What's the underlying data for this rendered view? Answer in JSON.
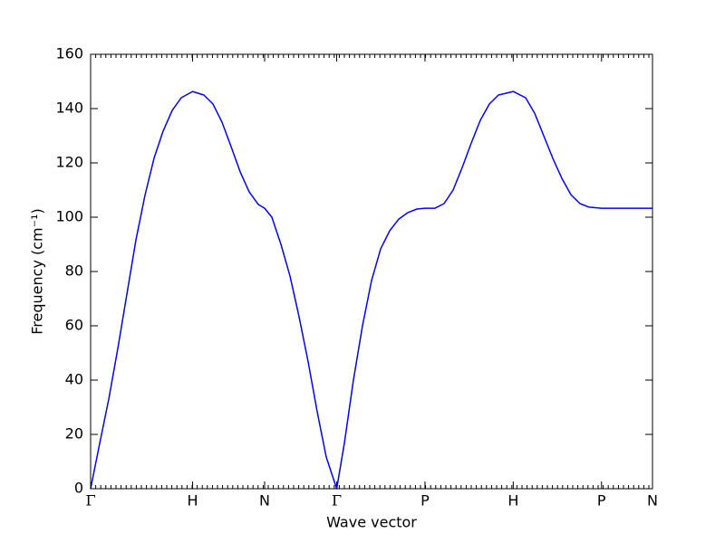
{
  "chart_data": {
    "type": "line",
    "xlabel": "Wave vector",
    "ylabel": "Frequency (cm⁻¹)",
    "xlim": [
      0,
      5.512
    ],
    "xticks": [
      {
        "value": 0,
        "label": "Γ"
      },
      {
        "value": 1,
        "label": "H"
      },
      {
        "value": 1.707,
        "label": "N"
      },
      {
        "value": 2.414,
        "label": "Γ"
      },
      {
        "value": 3.28,
        "label": "P"
      },
      {
        "value": 4.146,
        "label": "H"
      },
      {
        "value": 5.012,
        "label": "P"
      },
      {
        "value": 5.512,
        "label": "N"
      }
    ],
    "ylim": [
      0,
      160
    ],
    "yticks": [
      0,
      20,
      40,
      60,
      80,
      100,
      120,
      140,
      160
    ],
    "x": [
      0,
      0.089,
      0.178,
      0.267,
      0.356,
      0.445,
      0.533,
      0.622,
      0.711,
      0.8,
      0.889,
      1,
      1.111,
      1.2,
      1.289,
      1.378,
      1.467,
      1.556,
      1.645,
      1.707,
      1.778,
      1.867,
      1.956,
      2.045,
      2.134,
      2.223,
      2.311,
      2.414,
      2.489,
      2.578,
      2.667,
      2.756,
      2.845,
      2.934,
      3.023,
      3.112,
      3.2,
      3.28,
      3.378,
      3.467,
      3.556,
      3.645,
      3.734,
      3.823,
      3.912,
      4.001,
      4.146,
      4.267,
      4.356,
      4.445,
      4.534,
      4.623,
      4.712,
      4.801,
      4.89,
      5.012,
      5.157,
      5.335,
      5.512
    ],
    "series": [
      {
        "color": "#0000ff",
        "values": [
          0,
          16.7,
          33,
          51.7,
          71.7,
          91.7,
          108,
          121.7,
          131.7,
          139.3,
          144,
          146.3,
          145,
          141.7,
          135,
          126,
          116.7,
          109.3,
          104.7,
          103.3,
          100,
          90,
          78.3,
          63.3,
          46.7,
          28.3,
          11.7,
          0,
          16.7,
          40,
          60,
          76.7,
          88.3,
          95,
          99.3,
          101.7,
          103,
          103.3,
          103.3,
          105,
          110,
          118.3,
          127.3,
          135.7,
          141.7,
          145,
          146.3,
          144,
          138.3,
          130,
          121.7,
          114.3,
          108.3,
          105,
          103.7,
          103.3,
          103.3,
          103.3,
          103.3
        ]
      }
    ]
  }
}
